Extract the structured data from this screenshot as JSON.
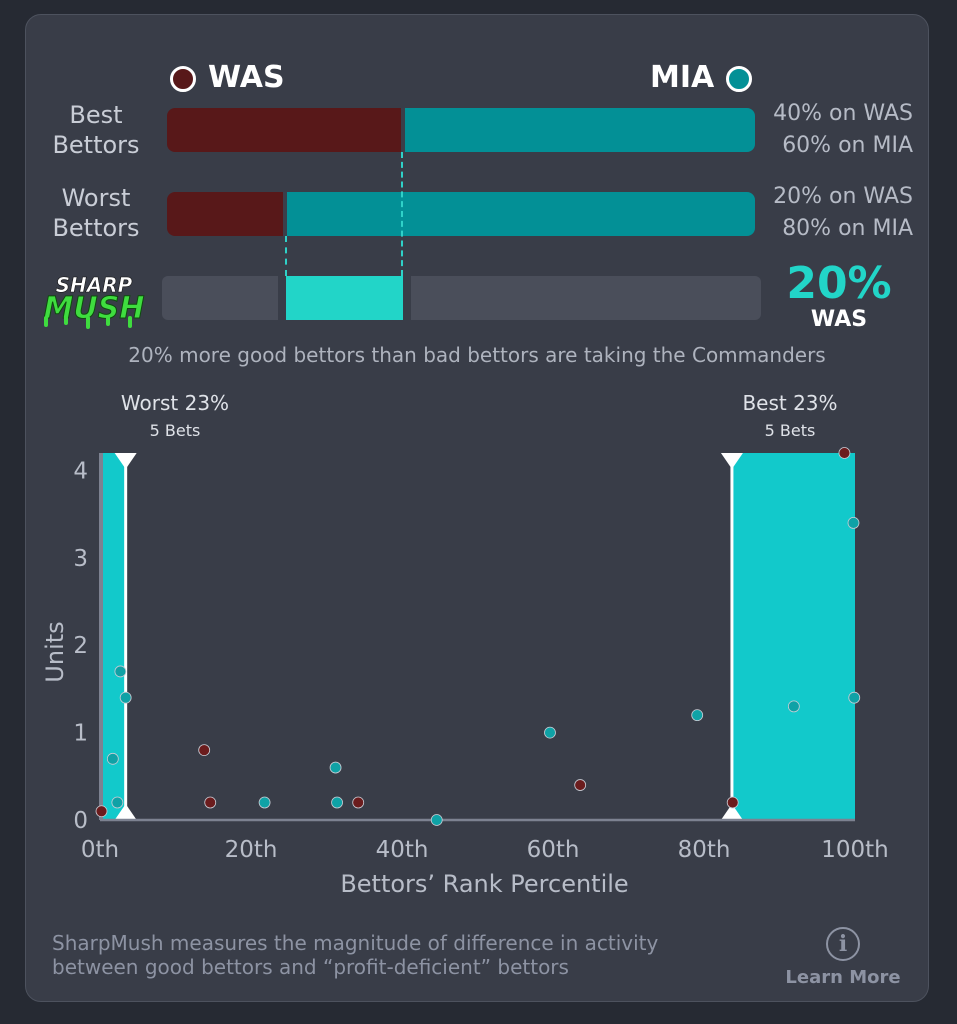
{
  "teams": {
    "away": {
      "abbr": "WAS",
      "color": "#581819"
    },
    "home": {
      "abbr": "MIA",
      "color": "#039096"
    }
  },
  "rows": [
    {
      "label_line1": "Best",
      "label_line2": "Bettors",
      "was_pct": 40,
      "mia_pct": 60,
      "was_text": "40% on WAS",
      "mia_text": "60% on MIA"
    },
    {
      "label_line1": "Worst",
      "label_line2": "Bettors",
      "was_pct": 20,
      "mia_pct": 80,
      "was_text": "20% on WAS",
      "mia_text": "80% on MIA"
    }
  ],
  "sharpmush": {
    "logo_line1": "SHARP",
    "logo_line2": "MUSH",
    "value_text": "20%",
    "team_text": "WAS",
    "from_pct": 20,
    "to_pct": 40,
    "caption": "20% more good bettors than bad bettors are taking the Commanders"
  },
  "chart_data": {
    "type": "scatter",
    "title": "",
    "xlabel": "Bettors’ Rank Percentile",
    "ylabel": "Units",
    "xlim": [
      0,
      100
    ],
    "ylim": [
      0,
      4.2
    ],
    "x_ticks": [
      0,
      20,
      40,
      60,
      80,
      100
    ],
    "x_tick_labels": [
      "0th",
      "20th",
      "40th",
      "60th",
      "80th",
      "100th"
    ],
    "y_ticks": [
      0,
      1,
      2,
      3,
      4
    ],
    "y_tick_labels": [
      "0",
      "1",
      "2",
      "3",
      "4"
    ],
    "regions": [
      {
        "name": "worst",
        "label": "Worst 23%",
        "sublabel": "5 Bets",
        "x_from": 0,
        "x_to": 3.4
      },
      {
        "name": "best",
        "label": "Best 23%",
        "sublabel": "5 Bets",
        "x_from": 83.7,
        "x_to": 100
      }
    ],
    "series": [
      {
        "name": "WAS",
        "color": "#6b1c1d",
        "points": [
          [
            0.2,
            0.1
          ],
          [
            13.8,
            0.8
          ],
          [
            14.6,
            0.2
          ],
          [
            34.2,
            0.2
          ],
          [
            63.6,
            0.4
          ],
          [
            83.8,
            0.2
          ],
          [
            98.6,
            4.2
          ]
        ]
      },
      {
        "name": "MIA",
        "color": "#0fa2a6",
        "points": [
          [
            1.7,
            0.7
          ],
          [
            2.3,
            0.2
          ],
          [
            2.7,
            1.7
          ],
          [
            3.4,
            1.4
          ],
          [
            21.8,
            0.2
          ],
          [
            31.2,
            0.6
          ],
          [
            31.4,
            0.2
          ],
          [
            44.6,
            0.0
          ],
          [
            59.6,
            1.0
          ],
          [
            79.1,
            1.2
          ],
          [
            91.9,
            1.3
          ],
          [
            99.8,
            3.4
          ],
          [
            99.9,
            1.4
          ]
        ]
      }
    ]
  },
  "footer": {
    "text_line1": "SharpMush measures the magnitude of difference in activity",
    "text_line2": "between good bettors and “profit-deficient” bettors",
    "learn_more": "Learn More",
    "info_glyph": "i"
  }
}
